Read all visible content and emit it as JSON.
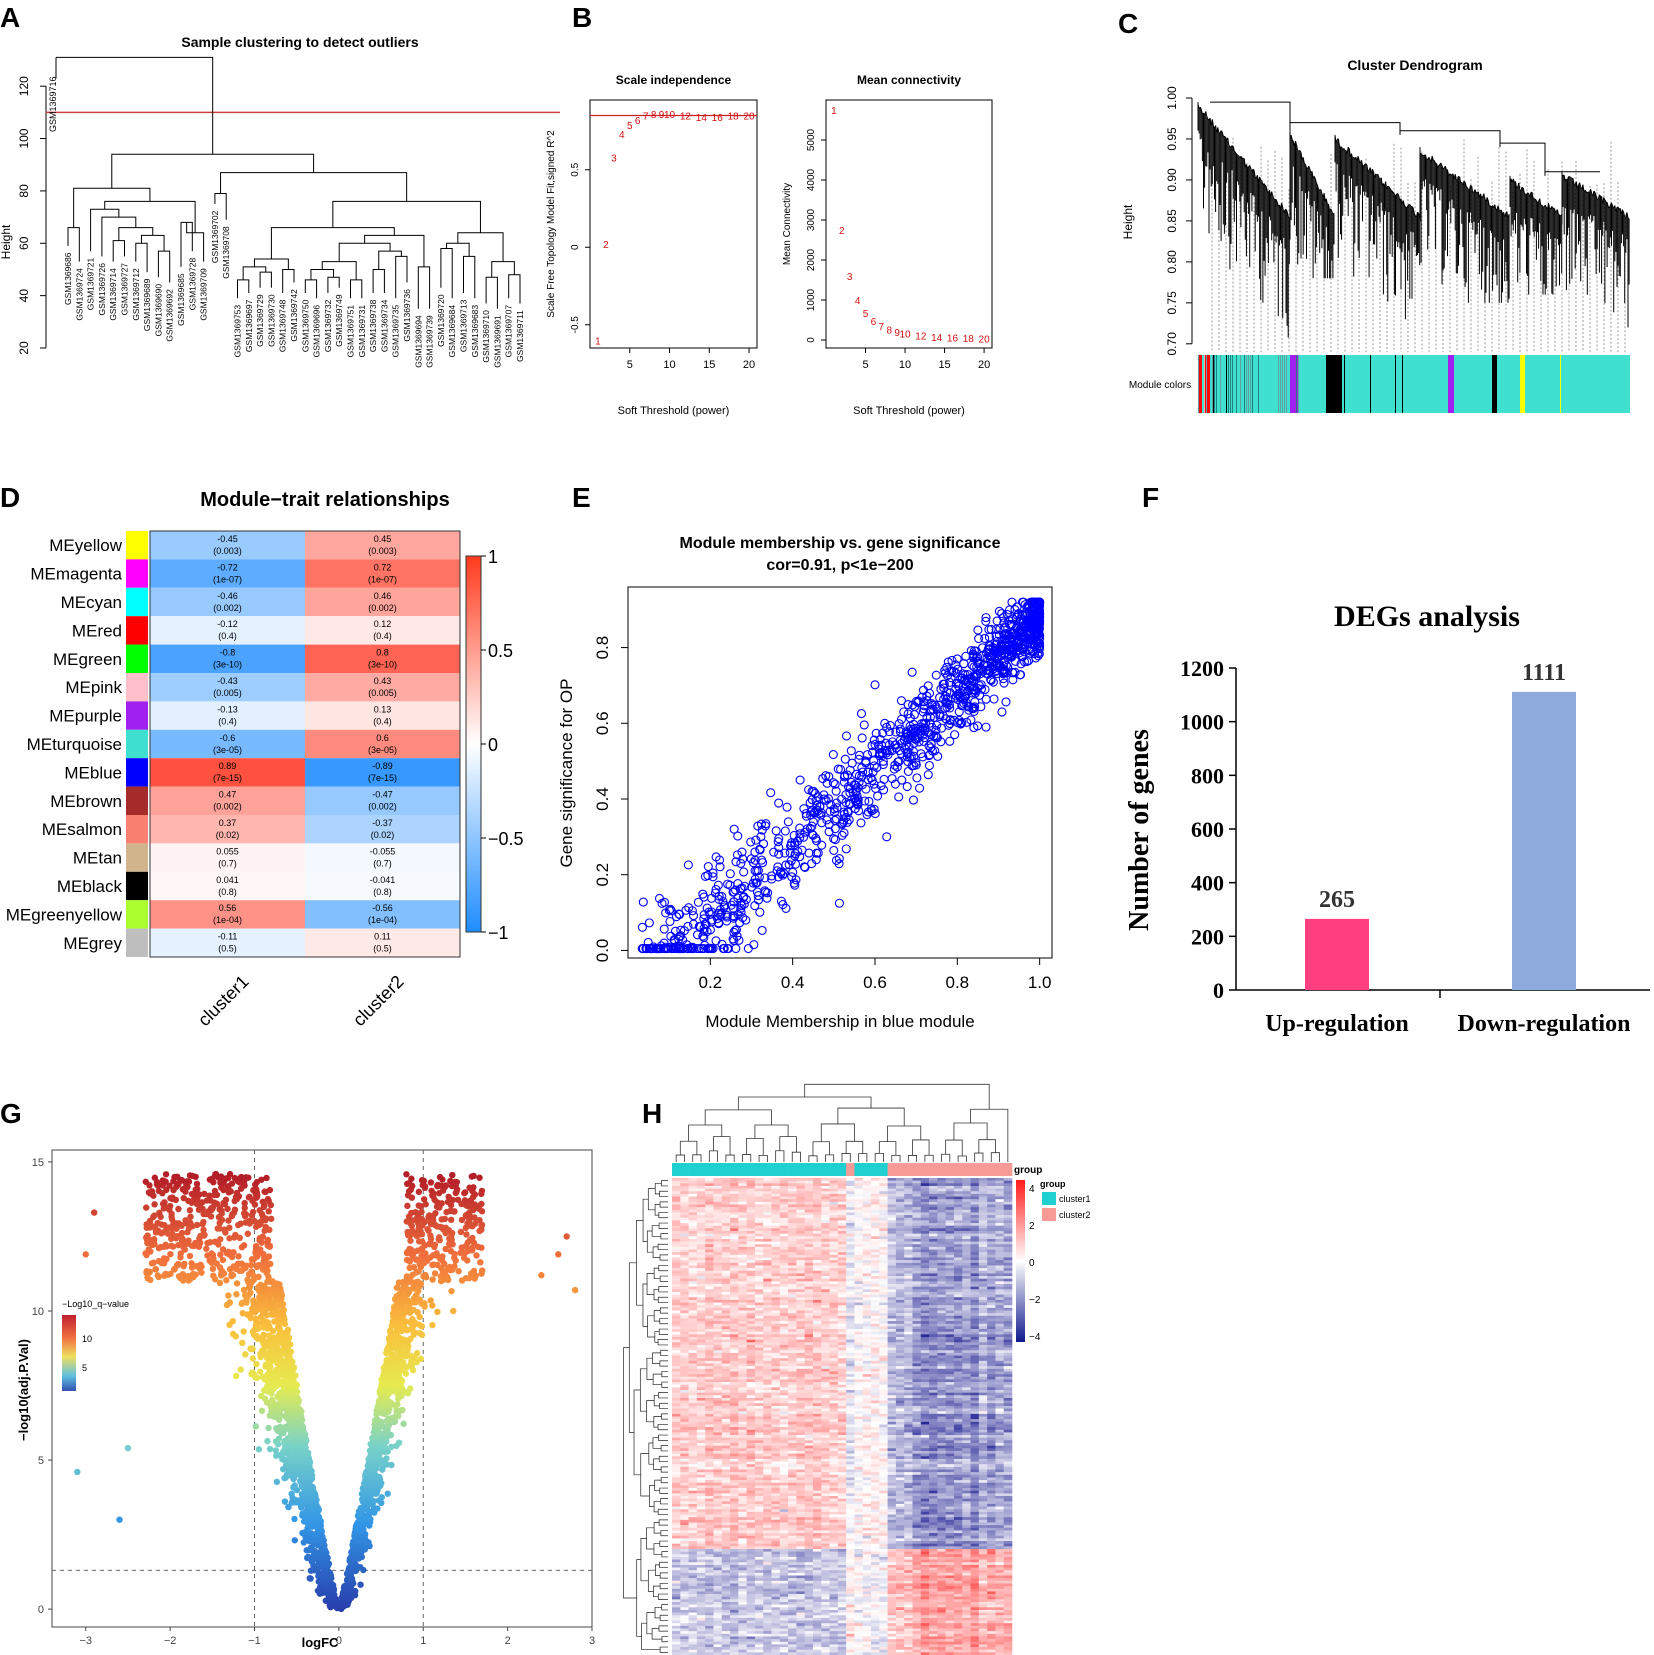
{
  "panels": {
    "A": {
      "letter": "A",
      "chart_data": {
        "type": "dendrogram",
        "title": "Sample clustering to detect outliers",
        "ylabel": "Height",
        "ylim": [
          20,
          130
        ],
        "yticks": [
          20,
          40,
          60,
          80,
          100,
          120
        ],
        "cut_height": 110,
        "outlier": "GSM1369716",
        "leaves": [
          "GSM1369686",
          "GSM1369724",
          "GSM1369721",
          "GSM1369726",
          "GSM1369714",
          "GSM1369727",
          "GSM1369712",
          "GSM1369689",
          "GSM1369690",
          "GSM1369692",
          "GSM1369685",
          "GSM1369728",
          "GSM1369709",
          "GSM1369702",
          "GSM1369708",
          "GSM1369753",
          "GSM1369697",
          "GSM1369729",
          "GSM1369730",
          "GSM1369748",
          "GSM1369742",
          "GSM1369750",
          "GSM1369696",
          "GSM1369732",
          "GSM1369749",
          "GSM1369751",
          "GSM1369731",
          "GSM1369738",
          "GSM1369734",
          "GSM1369735",
          "GSM1369736",
          "GSM1369694",
          "GSM1369739",
          "GSM1369720",
          "GSM1369684",
          "GSM1369713",
          "GSM1369683",
          "GSM1369710",
          "GSM1369691",
          "GSM1369707",
          "GSM1369711"
        ]
      }
    },
    "B": {
      "letter": "B",
      "chart_data": [
        {
          "type": "scatter",
          "title": "Scale independence",
          "xlabel": "Soft Threshold (power)",
          "ylabel": "Scale Free Topology Model Fit,signed R^2",
          "xlim": [
            0,
            21
          ],
          "ylim": [
            -0.65,
            0.95
          ],
          "xticks": [
            5,
            10,
            15,
            20
          ],
          "yticks": [
            -0.5,
            0.0,
            0.5
          ],
          "hline": 0.85,
          "points": [
            [
              1,
              -0.6
            ],
            [
              2,
              0.02
            ],
            [
              3,
              0.58
            ],
            [
              4,
              0.73
            ],
            [
              5,
              0.79
            ],
            [
              6,
              0.82
            ],
            [
              7,
              0.85
            ],
            [
              8,
              0.86
            ],
            [
              9,
              0.86
            ],
            [
              10,
              0.86
            ],
            [
              12,
              0.85
            ],
            [
              14,
              0.84
            ],
            [
              16,
              0.84
            ],
            [
              18,
              0.85
            ],
            [
              20,
              0.85
            ]
          ]
        },
        {
          "type": "scatter",
          "title": "Mean connectivity",
          "xlabel": "Soft Threshold (power)",
          "ylabel": "Mean Connectivity",
          "xlim": [
            0,
            21
          ],
          "ylim": [
            -200,
            6000
          ],
          "xticks": [
            5,
            10,
            15,
            20
          ],
          "yticks": [
            0,
            1000,
            2000,
            3000,
            4000,
            5000
          ],
          "points": [
            [
              1,
              5750
            ],
            [
              2,
              2750
            ],
            [
              3,
              1600
            ],
            [
              4,
              1000
            ],
            [
              5,
              680
            ],
            [
              6,
              480
            ],
            [
              7,
              350
            ],
            [
              8,
              260
            ],
            [
              9,
              200
            ],
            [
              10,
              160
            ],
            [
              12,
              110
            ],
            [
              14,
              80
            ],
            [
              16,
              60
            ],
            [
              18,
              45
            ],
            [
              20,
              35
            ]
          ]
        }
      ]
    },
    "C": {
      "letter": "C",
      "chart_data": {
        "type": "dendrogram",
        "title": "Cluster Dendrogram",
        "ylabel": "Height",
        "ylim": [
          0.69,
          1.0
        ],
        "yticks": [
          "0.70",
          "0.75",
          "0.80",
          "0.85",
          "0.90",
          "0.95",
          "1.00"
        ],
        "colorbar_label": "Module colors",
        "module_colors": [
          "#40e0d0",
          "#ff0000",
          "#a020f0",
          "#000000",
          "#ffff00"
        ]
      }
    },
    "D": {
      "letter": "D",
      "chart_data": {
        "type": "heatmap",
        "title": "Module−trait relationships",
        "columns": [
          "cluster1",
          "cluster2"
        ],
        "rows": [
          {
            "name": "MEyellow",
            "color": "#ffff00",
            "vals": [
              -0.45,
              0.45
            ],
            "labels": [
              "-0.45",
              "0.45"
            ],
            "p": [
              "(0.003)",
              "(0.003)"
            ]
          },
          {
            "name": "MEmagenta",
            "color": "#ff00ff",
            "vals": [
              -0.72,
              0.72
            ],
            "labels": [
              "-0.72",
              "0.72"
            ],
            "p": [
              "(1e-07)",
              "(1e-07)"
            ]
          },
          {
            "name": "MEcyan",
            "color": "#00ffff",
            "vals": [
              -0.46,
              0.46
            ],
            "labels": [
              "-0.46",
              "0.46"
            ],
            "p": [
              "(0.002)",
              "(0.002)"
            ]
          },
          {
            "name": "MEred",
            "color": "#ff0000",
            "vals": [
              -0.12,
              0.12
            ],
            "labels": [
              "-0.12",
              "0.12"
            ],
            "p": [
              "(0.4)",
              "(0.4)"
            ]
          },
          {
            "name": "MEgreen",
            "color": "#00ff00",
            "vals": [
              -0.8,
              0.8
            ],
            "labels": [
              "-0.8",
              "0.8"
            ],
            "p": [
              "(3e-10)",
              "(3e-10)"
            ]
          },
          {
            "name": "MEpink",
            "color": "#ffc0cb",
            "vals": [
              -0.43,
              0.43
            ],
            "labels": [
              "-0.43",
              "0.43"
            ],
            "p": [
              "(0.005)",
              "(0.005)"
            ]
          },
          {
            "name": "MEpurple",
            "color": "#a020f0",
            "vals": [
              -0.13,
              0.13
            ],
            "labels": [
              "-0.13",
              "0.13"
            ],
            "p": [
              "(0.4)",
              "(0.4)"
            ]
          },
          {
            "name": "MEturquoise",
            "color": "#40e0d0",
            "vals": [
              -0.6,
              0.6
            ],
            "labels": [
              "-0.6",
              "0.6"
            ],
            "p": [
              "(3e-05)",
              "(3e-05)"
            ]
          },
          {
            "name": "MEblue",
            "color": "#0000ff",
            "vals": [
              0.89,
              -0.89
            ],
            "labels": [
              "0.89",
              "-0.89"
            ],
            "p": [
              "(7e-15)",
              "(7e-15)"
            ]
          },
          {
            "name": "MEbrown",
            "color": "#a52a2a",
            "vals": [
              0.47,
              -0.47
            ],
            "labels": [
              "0.47",
              "-0.47"
            ],
            "p": [
              "(0.002)",
              "(0.002)"
            ]
          },
          {
            "name": "MEsalmon",
            "color": "#fa8072",
            "vals": [
              0.37,
              -0.37
            ],
            "labels": [
              "0.37",
              "-0.37"
            ],
            "p": [
              "(0.02)",
              "(0.02)"
            ]
          },
          {
            "name": "MEtan",
            "color": "#d2b48c",
            "vals": [
              0.055,
              -0.055
            ],
            "labels": [
              "0.055",
              "-0.055"
            ],
            "p": [
              "(0.7)",
              "(0.7)"
            ]
          },
          {
            "name": "MEblack",
            "color": "#000000",
            "vals": [
              0.041,
              -0.041
            ],
            "labels": [
              "0.041",
              "-0.041"
            ],
            "p": [
              "(0.8)",
              "(0.8)"
            ]
          },
          {
            "name": "MEgreenyellow",
            "color": "#adff2f",
            "vals": [
              0.56,
              -0.56
            ],
            "labels": [
              "0.56",
              "-0.56"
            ],
            "p": [
              "(1e-04)",
              "(1e-04)"
            ]
          },
          {
            "name": "MEgrey",
            "color": "#bebebe",
            "vals": [
              -0.11,
              0.11
            ],
            "labels": [
              "-0.11",
              "0.11"
            ],
            "p": [
              "(0.5)",
              "(0.5)"
            ]
          }
        ],
        "legend_ticks": [
          "1",
          "0.5",
          "0",
          "−0.5",
          "−1"
        ],
        "range": [
          -1,
          1
        ]
      }
    },
    "E": {
      "letter": "E",
      "chart_data": {
        "type": "scatter",
        "title": "Module membership vs. gene significance",
        "subtitle": "cor=0.91, p<1e−200",
        "xlabel": "Module Membership in blue module",
        "ylabel": "Gene significance for OP",
        "xlim": [
          0.0,
          1.03
        ],
        "ylim": [
          -0.02,
          0.96
        ],
        "xticks": [
          "0.2",
          "0.4",
          "0.6",
          "0.8",
          "1.0"
        ],
        "yticks": [
          "0.0",
          "0.2",
          "0.4",
          "0.6",
          "0.8"
        ],
        "n_points": 1200,
        "cor": 0.91,
        "color": "#0000ff"
      }
    },
    "F": {
      "letter": "F",
      "chart_data": {
        "type": "bar",
        "title": "DEGs analysis",
        "ylabel": "Number of genes",
        "categories": [
          "Up-regulation",
          "Down-regulation"
        ],
        "values": [
          265,
          1111
        ],
        "value_labels": [
          "265",
          "1111"
        ],
        "colors": [
          "#ff3f7f",
          "#8faadc"
        ],
        "ylim": [
          0,
          1200
        ],
        "yticks": [
          "0",
          "200",
          "400",
          "600",
          "800",
          "1000",
          "1200"
        ]
      }
    },
    "G": {
      "letter": "G",
      "chart_data": {
        "type": "scatter",
        "title": "",
        "xlabel": "logFC",
        "ylabel": "−log10(adj.P.Val)",
        "xlim": [
          -3.4,
          3.0
        ],
        "ylim": [
          -0.6,
          15.4
        ],
        "xticks": [
          "−3",
          "−2",
          "−1",
          "0",
          "1",
          "2",
          "3"
        ],
        "yticks": [
          "0",
          "5",
          "10",
          "15"
        ],
        "vlines": [
          -1,
          1
        ],
        "hline": 1.3,
        "legend_title": "−Log10_q−value",
        "legend_ticks": [
          "10",
          "5"
        ],
        "n_points": 2600
      }
    },
    "H": {
      "letter": "H",
      "chart_data": {
        "type": "heatmap",
        "legend_title": "group",
        "groups": [
          "cluster1",
          "cluster2"
        ],
        "group_colors": [
          "#20d0d0",
          "#f59a94"
        ],
        "scale_ticks": [
          "4",
          "2",
          "0",
          "−2",
          "−4"
        ],
        "n_cols": 41,
        "n_rows": 180
      }
    }
  }
}
